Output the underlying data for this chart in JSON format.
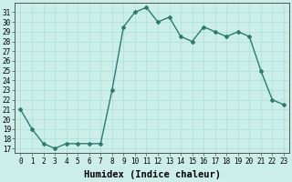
{
  "x": [
    0,
    1,
    2,
    3,
    4,
    5,
    6,
    7,
    8,
    9,
    10,
    11,
    12,
    13,
    14,
    15,
    16,
    17,
    18,
    19,
    20,
    21,
    22,
    23
  ],
  "y": [
    21,
    19,
    17.5,
    17,
    17.5,
    17.5,
    17.5,
    17.5,
    23,
    29.5,
    31,
    31.5,
    30,
    30.5,
    28.5,
    28,
    29.5,
    29,
    28.5,
    29,
    28.5,
    25,
    22,
    21.5
  ],
  "line_color": "#2d7a6e",
  "marker": "D",
  "marker_size": 2,
  "bg_color": "#cceee8",
  "grid_color": "#aaddda",
  "xlabel": "Humidex (Indice chaleur)",
  "xlim": [
    -0.5,
    23.5
  ],
  "ylim": [
    16.5,
    32.0
  ],
  "yticks": [
    17,
    18,
    19,
    20,
    21,
    22,
    23,
    24,
    25,
    26,
    27,
    28,
    29,
    30,
    31
  ],
  "xticks": [
    0,
    1,
    2,
    3,
    4,
    5,
    6,
    7,
    8,
    9,
    10,
    11,
    12,
    13,
    14,
    15,
    16,
    17,
    18,
    19,
    20,
    21,
    22,
    23
  ],
  "tick_fontsize": 5.5,
  "xlabel_fontsize": 7.5,
  "line_width": 1.0
}
